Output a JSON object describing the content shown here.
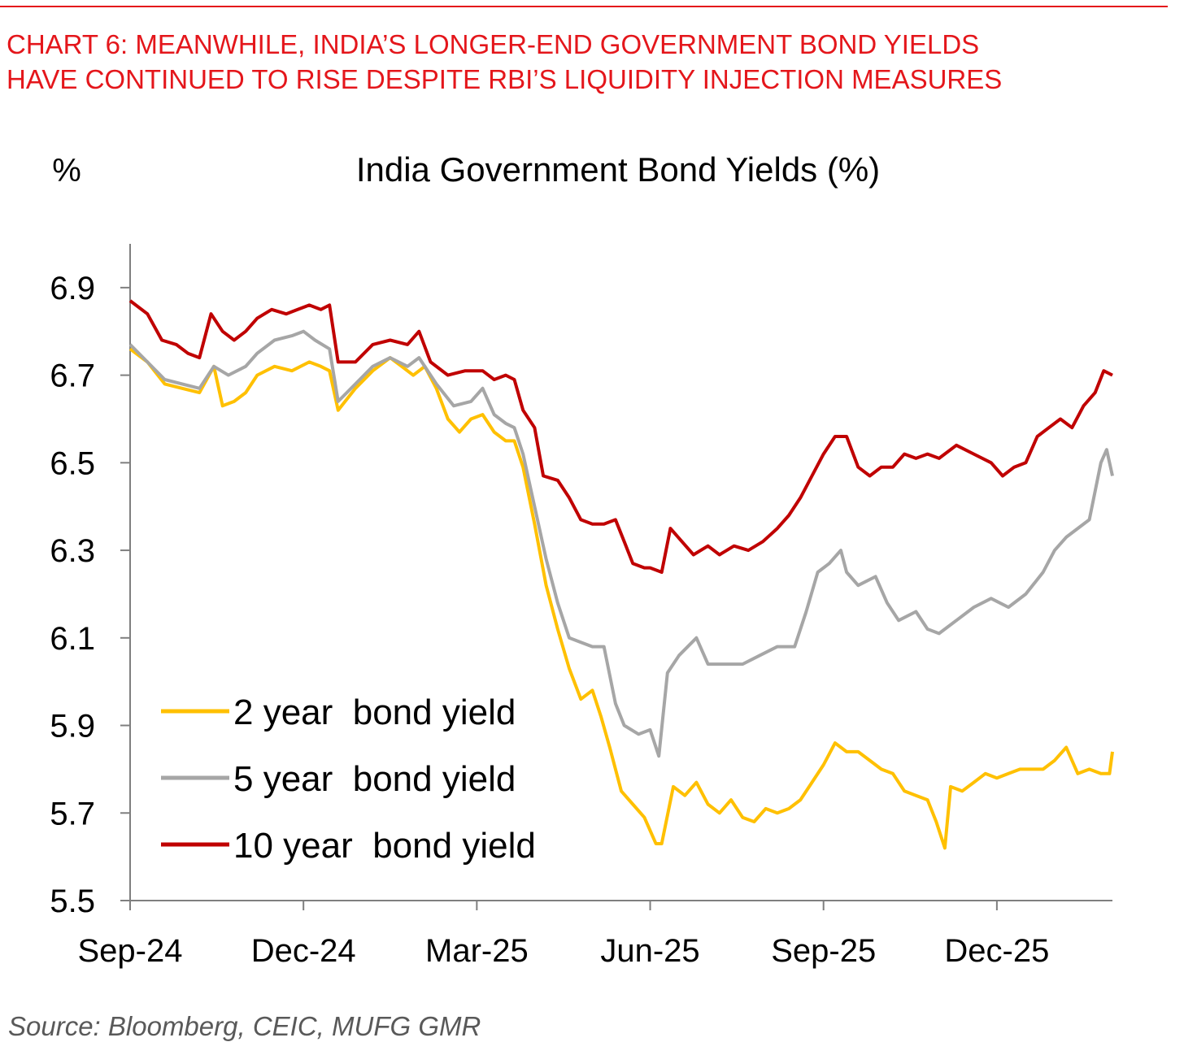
{
  "header": {
    "title_line1": "CHART 6: MEANWHILE, INDIA’S LONGER-END GOVERNMENT BOND YIELDS",
    "title_line2": "HAVE CONTINUED TO RISE DESPITE RBI’S LIQUIDITY INJECTION MEASURES"
  },
  "footer": {
    "source": "Source: Bloomberg, CEIC, MUFG GMR"
  },
  "colors": {
    "accent": "#e4161b",
    "two_year": "#ffc000",
    "five_year": "#a6a6a6",
    "ten_year": "#c00000"
  },
  "chart_data": {
    "type": "line",
    "title": "India Government Bond Yields (%)",
    "ylabel": "%",
    "xlabel": "",
    "ylim": [
      5.5,
      7.0
    ],
    "yticks": [
      5.5,
      5.7,
      5.9,
      6.1,
      6.3,
      6.5,
      6.7,
      6.9
    ],
    "ytick_labels": [
      "5.5",
      "5.7",
      "5.9",
      "6.1",
      "6.3",
      "6.5",
      "6.7",
      "6.9"
    ],
    "xlim": [
      0,
      17
    ],
    "xticks": [
      0,
      3,
      6,
      9,
      12,
      15
    ],
    "xtick_labels": [
      "Sep-24",
      "Dec-24",
      "Mar-25",
      "Jun-25",
      "Sep-25",
      "Dec-25"
    ],
    "legend_position": "bottom-left",
    "series": [
      {
        "name": "2 year  bond yield",
        "color": "#ffc000",
        "points": [
          [
            0,
            6.76
          ],
          [
            0.3,
            6.73
          ],
          [
            0.6,
            6.68
          ],
          [
            0.9,
            6.67
          ],
          [
            1.2,
            6.66
          ],
          [
            1.45,
            6.72
          ],
          [
            1.6,
            6.63
          ],
          [
            1.8,
            6.64
          ],
          [
            2.0,
            6.66
          ],
          [
            2.2,
            6.7
          ],
          [
            2.5,
            6.72
          ],
          [
            2.8,
            6.71
          ],
          [
            3.1,
            6.73
          ],
          [
            3.3,
            6.72
          ],
          [
            3.45,
            6.71
          ],
          [
            3.6,
            6.62
          ],
          [
            3.9,
            6.67
          ],
          [
            4.2,
            6.71
          ],
          [
            4.5,
            6.74
          ],
          [
            4.7,
            6.72
          ],
          [
            4.9,
            6.7
          ],
          [
            5.1,
            6.72
          ],
          [
            5.3,
            6.67
          ],
          [
            5.5,
            6.6
          ],
          [
            5.7,
            6.57
          ],
          [
            5.9,
            6.6
          ],
          [
            6.1,
            6.61
          ],
          [
            6.3,
            6.57
          ],
          [
            6.5,
            6.55
          ],
          [
            6.65,
            6.55
          ],
          [
            6.8,
            6.49
          ],
          [
            7.0,
            6.36
          ],
          [
            7.2,
            6.22
          ],
          [
            7.4,
            6.12
          ],
          [
            7.6,
            6.03
          ],
          [
            7.8,
            5.96
          ],
          [
            8.0,
            5.98
          ],
          [
            8.15,
            5.92
          ],
          [
            8.3,
            5.85
          ],
          [
            8.5,
            5.75
          ],
          [
            8.7,
            5.72
          ],
          [
            8.9,
            5.69
          ],
          [
            9.1,
            5.63
          ],
          [
            9.2,
            5.63
          ],
          [
            9.4,
            5.76
          ],
          [
            9.6,
            5.74
          ],
          [
            9.8,
            5.77
          ],
          [
            10.0,
            5.72
          ],
          [
            10.2,
            5.7
          ],
          [
            10.4,
            5.73
          ],
          [
            10.6,
            5.69
          ],
          [
            10.8,
            5.68
          ],
          [
            11.0,
            5.71
          ],
          [
            11.2,
            5.7
          ],
          [
            11.4,
            5.71
          ],
          [
            11.6,
            5.73
          ],
          [
            11.8,
            5.77
          ],
          [
            12.0,
            5.81
          ],
          [
            12.2,
            5.86
          ],
          [
            12.4,
            5.84
          ],
          [
            12.6,
            5.84
          ],
          [
            12.8,
            5.82
          ],
          [
            13.0,
            5.8
          ],
          [
            13.2,
            5.79
          ],
          [
            13.4,
            5.75
          ],
          [
            13.6,
            5.74
          ],
          [
            13.8,
            5.73
          ],
          [
            13.95,
            5.68
          ],
          [
            14.1,
            5.62
          ],
          [
            14.2,
            5.76
          ],
          [
            14.4,
            5.75
          ],
          [
            14.6,
            5.77
          ],
          [
            14.8,
            5.79
          ],
          [
            15.0,
            5.78
          ],
          [
            15.2,
            5.79
          ],
          [
            15.4,
            5.8
          ],
          [
            15.6,
            5.8
          ],
          [
            15.8,
            5.8
          ],
          [
            16.0,
            5.82
          ],
          [
            16.2,
            5.85
          ],
          [
            16.4,
            5.79
          ],
          [
            16.6,
            5.8
          ],
          [
            16.8,
            5.79
          ],
          [
            16.95,
            5.79
          ],
          [
            17.0,
            5.84
          ]
        ]
      },
      {
        "name": "5 year  bond yield",
        "color": "#a6a6a6",
        "points": [
          [
            0,
            6.77
          ],
          [
            0.3,
            6.73
          ],
          [
            0.6,
            6.69
          ],
          [
            0.9,
            6.68
          ],
          [
            1.2,
            6.67
          ],
          [
            1.45,
            6.72
          ],
          [
            1.7,
            6.7
          ],
          [
            2.0,
            6.72
          ],
          [
            2.2,
            6.75
          ],
          [
            2.5,
            6.78
          ],
          [
            2.8,
            6.79
          ],
          [
            3.0,
            6.8
          ],
          [
            3.2,
            6.78
          ],
          [
            3.45,
            6.76
          ],
          [
            3.6,
            6.64
          ],
          [
            3.9,
            6.68
          ],
          [
            4.2,
            6.72
          ],
          [
            4.5,
            6.74
          ],
          [
            4.8,
            6.72
          ],
          [
            5.0,
            6.74
          ],
          [
            5.3,
            6.68
          ],
          [
            5.6,
            6.63
          ],
          [
            5.9,
            6.64
          ],
          [
            6.1,
            6.67
          ],
          [
            6.3,
            6.61
          ],
          [
            6.5,
            6.59
          ],
          [
            6.65,
            6.58
          ],
          [
            6.8,
            6.52
          ],
          [
            7.0,
            6.4
          ],
          [
            7.2,
            6.28
          ],
          [
            7.4,
            6.18
          ],
          [
            7.6,
            6.1
          ],
          [
            7.8,
            6.09
          ],
          [
            8.0,
            6.08
          ],
          [
            8.2,
            6.08
          ],
          [
            8.4,
            5.95
          ],
          [
            8.55,
            5.9
          ],
          [
            8.8,
            5.88
          ],
          [
            9.0,
            5.89
          ],
          [
            9.15,
            5.83
          ],
          [
            9.3,
            6.02
          ],
          [
            9.5,
            6.06
          ],
          [
            9.8,
            6.1
          ],
          [
            10.0,
            6.04
          ],
          [
            10.3,
            6.04
          ],
          [
            10.6,
            6.04
          ],
          [
            10.9,
            6.06
          ],
          [
            11.2,
            6.08
          ],
          [
            11.5,
            6.08
          ],
          [
            11.7,
            6.16
          ],
          [
            11.9,
            6.25
          ],
          [
            12.1,
            6.27
          ],
          [
            12.3,
            6.3
          ],
          [
            12.4,
            6.25
          ],
          [
            12.6,
            6.22
          ],
          [
            12.9,
            6.24
          ],
          [
            13.1,
            6.18
          ],
          [
            13.3,
            6.14
          ],
          [
            13.6,
            6.16
          ],
          [
            13.8,
            6.12
          ],
          [
            14.0,
            6.11
          ],
          [
            14.3,
            6.14
          ],
          [
            14.6,
            6.17
          ],
          [
            14.9,
            6.19
          ],
          [
            15.2,
            6.17
          ],
          [
            15.5,
            6.2
          ],
          [
            15.8,
            6.25
          ],
          [
            16.0,
            6.3
          ],
          [
            16.2,
            6.33
          ],
          [
            16.4,
            6.35
          ],
          [
            16.6,
            6.37
          ],
          [
            16.8,
            6.5
          ],
          [
            16.9,
            6.53
          ],
          [
            17.0,
            6.47
          ]
        ]
      },
      {
        "name": "10 year  bond yield",
        "color": "#c00000",
        "points": [
          [
            0,
            6.87
          ],
          [
            0.3,
            6.84
          ],
          [
            0.55,
            6.78
          ],
          [
            0.8,
            6.77
          ],
          [
            1.0,
            6.75
          ],
          [
            1.2,
            6.74
          ],
          [
            1.4,
            6.84
          ],
          [
            1.6,
            6.8
          ],
          [
            1.8,
            6.78
          ],
          [
            2.0,
            6.8
          ],
          [
            2.2,
            6.83
          ],
          [
            2.45,
            6.85
          ],
          [
            2.7,
            6.84
          ],
          [
            2.9,
            6.85
          ],
          [
            3.1,
            6.86
          ],
          [
            3.3,
            6.85
          ],
          [
            3.45,
            6.86
          ],
          [
            3.6,
            6.73
          ],
          [
            3.9,
            6.73
          ],
          [
            4.2,
            6.77
          ],
          [
            4.5,
            6.78
          ],
          [
            4.8,
            6.77
          ],
          [
            5.0,
            6.8
          ],
          [
            5.2,
            6.73
          ],
          [
            5.5,
            6.7
          ],
          [
            5.8,
            6.71
          ],
          [
            6.1,
            6.71
          ],
          [
            6.3,
            6.69
          ],
          [
            6.5,
            6.7
          ],
          [
            6.65,
            6.69
          ],
          [
            6.8,
            6.62
          ],
          [
            7.0,
            6.58
          ],
          [
            7.15,
            6.47
          ],
          [
            7.4,
            6.46
          ],
          [
            7.6,
            6.42
          ],
          [
            7.8,
            6.37
          ],
          [
            8.0,
            6.36
          ],
          [
            8.2,
            6.36
          ],
          [
            8.4,
            6.37
          ],
          [
            8.55,
            6.32
          ],
          [
            8.7,
            6.27
          ],
          [
            8.9,
            6.26
          ],
          [
            9.0,
            6.26
          ],
          [
            9.2,
            6.25
          ],
          [
            9.35,
            6.35
          ],
          [
            9.55,
            6.32
          ],
          [
            9.75,
            6.29
          ],
          [
            10.0,
            6.31
          ],
          [
            10.2,
            6.29
          ],
          [
            10.45,
            6.31
          ],
          [
            10.7,
            6.3
          ],
          [
            10.95,
            6.32
          ],
          [
            11.2,
            6.35
          ],
          [
            11.4,
            6.38
          ],
          [
            11.6,
            6.42
          ],
          [
            11.8,
            6.47
          ],
          [
            12.0,
            6.52
          ],
          [
            12.2,
            6.56
          ],
          [
            12.4,
            6.56
          ],
          [
            12.6,
            6.49
          ],
          [
            12.8,
            6.47
          ],
          [
            13.0,
            6.49
          ],
          [
            13.2,
            6.49
          ],
          [
            13.4,
            6.52
          ],
          [
            13.6,
            6.51
          ],
          [
            13.8,
            6.52
          ],
          [
            14.0,
            6.51
          ],
          [
            14.3,
            6.54
          ],
          [
            14.6,
            6.52
          ],
          [
            14.9,
            6.5
          ],
          [
            15.1,
            6.47
          ],
          [
            15.3,
            6.49
          ],
          [
            15.5,
            6.5
          ],
          [
            15.7,
            6.56
          ],
          [
            15.9,
            6.58
          ],
          [
            16.1,
            6.6
          ],
          [
            16.3,
            6.58
          ],
          [
            16.5,
            6.63
          ],
          [
            16.7,
            6.66
          ],
          [
            16.85,
            6.71
          ],
          [
            17.0,
            6.7
          ]
        ]
      }
    ]
  }
}
